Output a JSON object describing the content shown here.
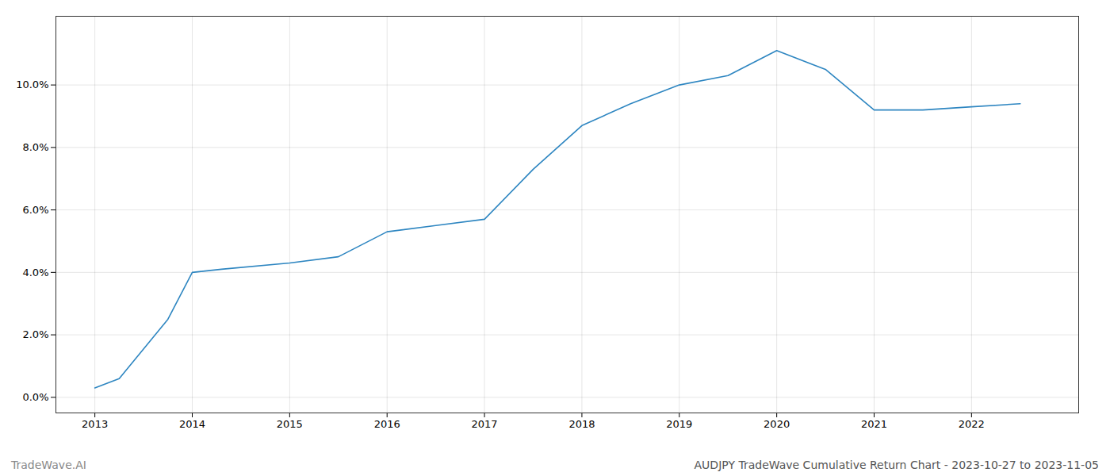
{
  "chart_data": {
    "type": "line",
    "title": "AUDJPY TradeWave Cumulative Return Chart - 2023-10-27 to 2023-11-05",
    "annotations": [
      "TradeWave.AI"
    ],
    "x": [
      2013.0,
      2013.25,
      2013.75,
      2014.0,
      2014.3,
      2015.0,
      2015.5,
      2016.0,
      2016.5,
      2017.0,
      2017.5,
      2018.0,
      2018.5,
      2019.0,
      2019.5,
      2020.0,
      2020.5,
      2021.0,
      2021.5,
      2022.0,
      2022.5
    ],
    "values": [
      0.003,
      0.006,
      0.025,
      0.04,
      0.041,
      0.043,
      0.045,
      0.053,
      0.055,
      0.057,
      0.073,
      0.087,
      0.094,
      0.1,
      0.103,
      0.111,
      0.105,
      0.092,
      0.092,
      0.093,
      0.094
    ],
    "color": "#2e86c1",
    "xlim": [
      2012.6,
      2023.1
    ],
    "ylim": [
      -0.005,
      0.122
    ],
    "xticks": [
      2013,
      2014,
      2015,
      2016,
      2017,
      2018,
      2019,
      2020,
      2021,
      2022
    ],
    "yticks": [
      {
        "value": 0.0,
        "label": "0.0%"
      },
      {
        "value": 0.02,
        "label": "2.0%"
      },
      {
        "value": 0.04,
        "label": "4.0%"
      },
      {
        "value": 0.06,
        "label": "6.0%"
      },
      {
        "value": 0.08,
        "label": "8.0%"
      },
      {
        "value": 0.1,
        "label": "10.0%"
      }
    ],
    "grid": true
  }
}
